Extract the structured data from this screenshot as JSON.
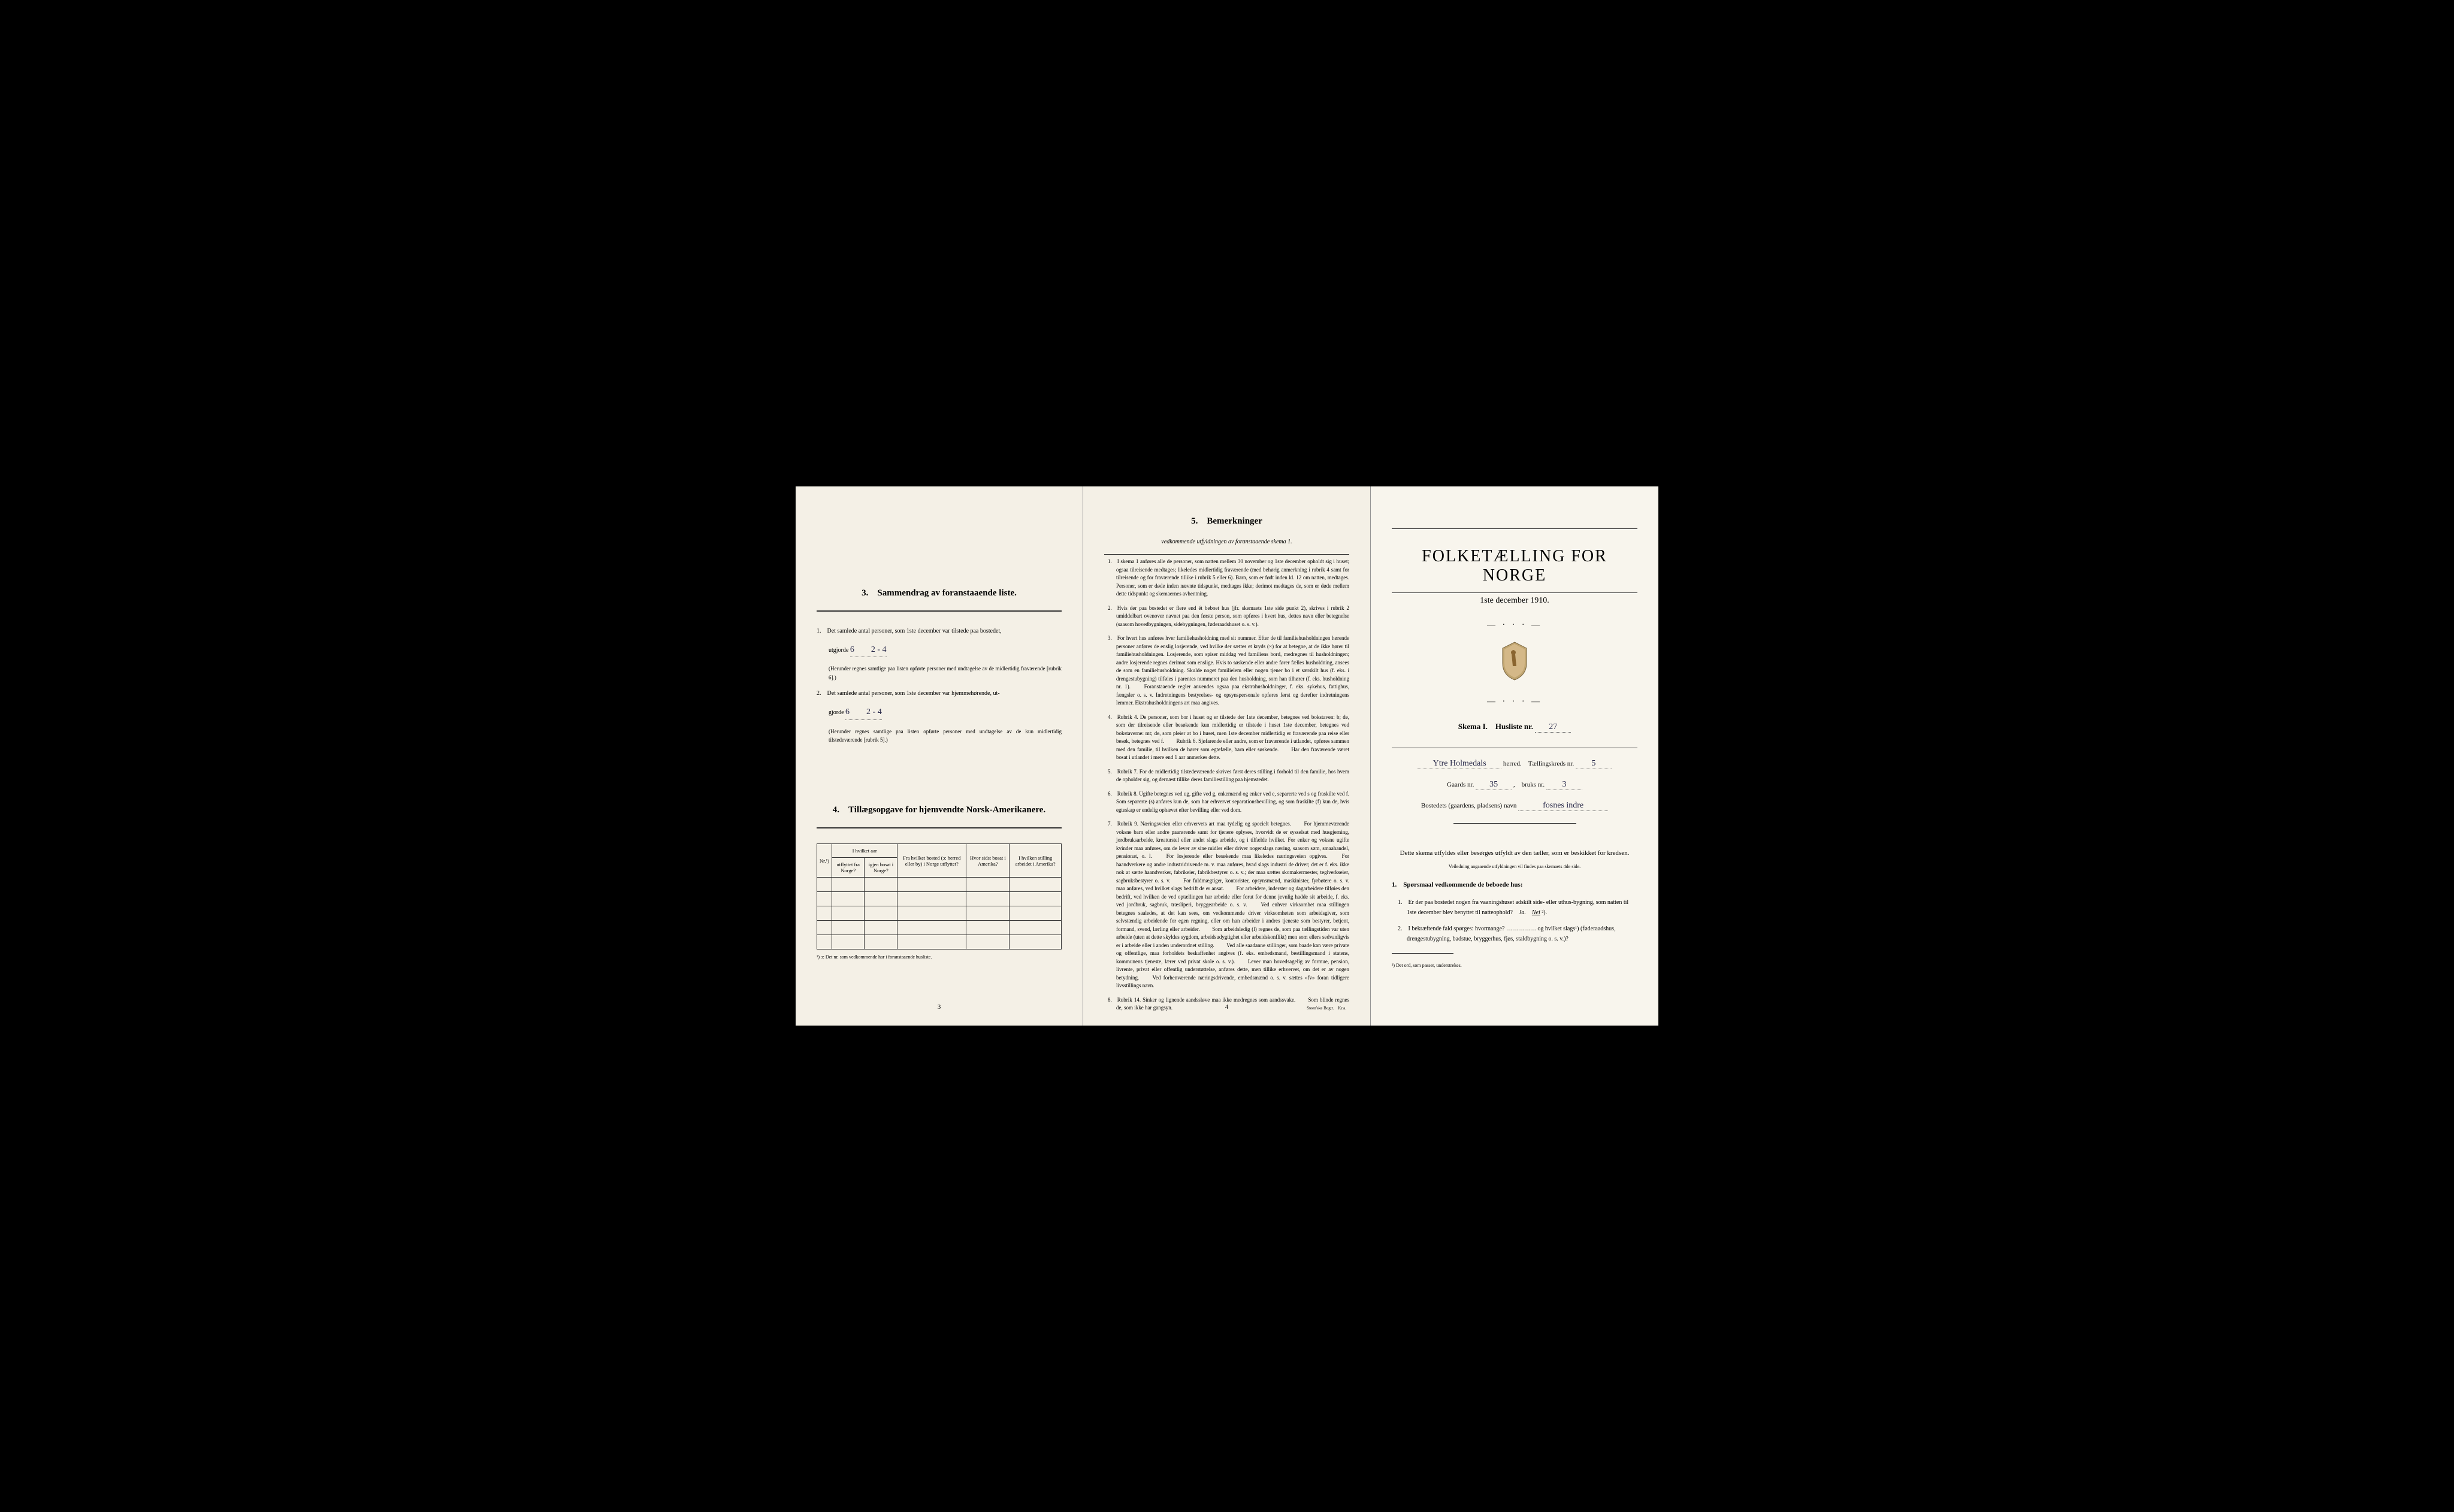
{
  "page1": {
    "section3_title": "3. Sammendrag av foranstaaende liste.",
    "item1_pre": "1. Det samlede antal personer, som 1ste december var tilstede paa bostedet,",
    "item1_line": "utgjorde",
    "item1_hand": "6  2 - 4",
    "item1_note": "(Herunder regnes samtlige paa listen opførte personer med undtagelse av de midlertidig fraværende [rubrik 6].)",
    "item2_pre": "2. Det samlede antal personer, som 1ste december var hjemmehørende, ut-",
    "item2_line": "gjorde",
    "item2_hand": "6  2 - 4",
    "item2_note": "(Herunder regnes samtlige paa listen opførte personer med undtagelse av de kun midlertidig tilstedeværende [rubrik 5].)",
    "section4_title": "4. Tillægsopgave for hjemvendte Norsk-Amerikanere.",
    "table": {
      "headers": [
        "Nr.¹)",
        "I hvilket aar",
        "Fra hvilket bosted (ɔ: herred eller by) i Norge utflyttet?",
        "Hvor sidst bosat i Amerika?",
        "I hvilken stilling arbeidet i Amerika?"
      ],
      "sub_headers": [
        "",
        "utflyttet fra Norge?",
        "igjen bosat i Norge?",
        "",
        "",
        ""
      ],
      "empty_rows": 5
    },
    "table_footnote": "¹) ɔ: Det nr. som vedkommende har i foranstaaende husliste.",
    "page_number": "3"
  },
  "page2": {
    "section5_title": "5. Bemerkninger",
    "section5_sub": "vedkommende utfyldningen av foranstaaende skema 1.",
    "items": [
      "1. I skema 1 anføres alle de personer, som natten mellem 30 november og 1ste december opholdt sig i huset; ogsaa tilreisende medtages; likeledes midlertidig fraværende (med behørig anmerkning i rubrik 4 samt for tilreisende og for fraværende tillike i rubrik 5 eller 6). Barn, som er født inden kl. 12 om natten, medtages. Personer, som er døde inden nævnte tidspunkt, medtages ikke; derimot medtages de, som er døde mellem dette tidspunkt og skemaernes avhentning.",
      "2. Hvis der paa bostedet er flere end ét beboet hus (jfr. skemaets 1ste side punkt 2), skrives i rubrik 2 umiddelbart ovenover navnet paa den første person, som opføres i hvert hus, dettes navn eller betegnelse (saasom hovedbygningen, sidebygningen, føderaadshuset o. s. v.).",
      "3. For hvert hus anføres hver familiehusholdning med sit nummer. Efter de til familiehusholdningen hørende personer anføres de enslig losjerende, ved hvilke der sættes et kryds (×) for at betegne, at de ikke hører til familiehusholdningen. Losjerende, som spiser middag ved familiens bord, medregnes til husholdningen; andre losjerende regnes derimot som enslige. Hvis to søskende eller andre fører fælles husholdning, ansees de som en familiehusholdning. Skulde noget familielem eller nogen tjener bo i et særskilt hus (f. eks. i drengestubygning) tilføies i parentes nummeret paa den husholdning, som han tilhører (f. eks. husholdning nr. 1).\n  Foranstaaende regler anvendes ogsaa paa ekstrahusholdninger, f. eks. sykehus, fattighus, fængsler o. s. v. Indretningens bestyrelses- og opsynspersonale opføres først og derefter indretningens lemmer. Ekstrahusholdningens art maa angives.",
      "4. Rubrik 4. De personer, som bor i huset og er tilstede der 1ste december, betegnes ved bokstaven: b; de, som der tilreisende eller besøkende kun midlertidig er tilstede i huset 1ste december, betegnes ved bokstaverne: mt; de, som pleier at bo i huset, men 1ste december midlertidig er fraværende paa reise eller besøk, betegnes ved f.\n  Rubrik 6. Sjøfarende eller andre, som er fraværende i utlandet, opføres sammen med den familie, til hvilken de hører som egtefælle, barn eller søskende.\n  Har den fraværende været bosat i utlandet i mere end 1 aar anmerkes dette.",
      "5. Rubrik 7. For de midlertidig tilstedeværende skrives først deres stilling i forhold til den familie, hos hvem de opholder sig, og dernæst tillike deres familiestilling paa hjemstedet.",
      "6. Rubrik 8. Ugifte betegnes ved ug, gifte ved g, enkemænd og enker ved e, separerte ved s og fraskilte ved f. Som separerte (s) anføres kun de, som har erhvervet separationsbevilling, og som fraskilte (f) kun de, hvis egteskap er endelig ophævet efter bevilling eller ved dom.",
      "7. Rubrik 9. Næringsveien eller erhvervets art maa tydelig og specielt betegnes.\n  For hjemmeværende voksne barn eller andre paarørende samt for tjenere oplyses, hvorvidt de er sysselsat med husgjerning, jordbruksarbeide, kreaturstel eller andet slags arbeide, og i tilfælde hvilket. For enker og voksne ugifte kvinder maa anføres, om de lever av sine midler eller driver nogenslags næring, saasom søm, smaahandel, pensionat, o. l.\n  For losjerende eller besøkende maa likeledes næringsveien opgives.\n  For haandverkere og andre industridrivende m. v. maa anføres, hvad slags industri de driver; det er f. eks. ikke nok at sætte haandverker, fabrikeier, fabrikbestyrer o. s. v.; der maa sættes skomakermester, teglverkseier, sagbruksbestyrer o. s. v.\n  For fuldmægtiger, kontorister, opsynsmænd, maskinister, fyrbøtere o. s. v. maa anføres, ved hvilket slags bedrift de er ansat.\n  For arbeidere, inderster og dagarbeidere tilføies den bedrift, ved hvilken de ved optællingen har arbeide eller forut for denne jevnlig hadde sit arbeide, f. eks. ved jordbruk, sagbruk, træsliperi, bryggearbeide o. s. v.\n  Ved enhver virksomhet maa stillingen betegnes saaledes, at det kan sees, om vedkommende driver virksomheten som arbeidsgiver, som selvstændig arbeidende for egen regning, eller om han arbeider i andres tjeneste som bestyrer, betjent, formand, svend, lærling eller arbeider.\n  Som arbeidsledig (l) regnes de, som paa tællingstiden var uten arbeide (uten at dette skyldes sygdom, arbeidsudygtighet eller arbeidskonflikt) men som ellers sedvanligvis er i arbeide eller i anden underordnet stilling.\n  Ved alle saadanne stillinger, som baade kan være private og offentlige, maa forholdets beskaffenhet angives (f. eks. embedsmand, bestillingsmand i statens, kommunens tjeneste, lærer ved privat skole o. s. v.).\n  Lever man hovedsagelig av formue, pension, livrente, privat eller offentlig understøttelse, anføres dette, men tillike erhvervet, om det er av nogen betydning.\n  Ved forhenværende næringsdrivende, embedsmænd o. s. v. sættes «fv» foran tidligere livsstillings navn.",
      "8. Rubrik 14. Sinker og lignende aandssløve maa ikke medregnes som aandssvake.\n  Som blinde regnes de, som ikke har gangsyn."
    ],
    "page_number": "4",
    "printer": "Steen'ske Bogtr. Kr.a."
  },
  "page3": {
    "main_title": "FOLKETÆLLING FOR NORGE",
    "date": "1ste december 1910.",
    "skema": "Skema I. Husliste nr.",
    "husliste_nr": "27",
    "herred_hand": "Ytre Holmedals",
    "herred_label": "herred. Tællingskreds nr.",
    "kreds_nr": "5",
    "gaards_label": "Gaards nr.",
    "gaards_nr": "35",
    "bruks_label": ", bruks nr.",
    "bruks_nr": "3",
    "bosted_label": "Bostedets (gaardens, pladsens) navn",
    "bosted_hand": "fosnes indre",
    "intro": "Dette skema utfyldes eller besørges utfyldt av den tæller, som er beskikket for kredsen.",
    "intro_sub": "Veiledning angaaende utfyldningen vil findes paa skemaets 4de side.",
    "q_head": "1. Spørsmaal vedkommende de beboede hus:",
    "q1": "1. Er der paa bostedet nogen fra vaaningshuset adskilt side- eller uthus-bygning, som natten til 1ste december blev benyttet til natteophold? Ja. Nei ²).",
    "q2": "2. I bekræftende fald spørges: hvormange? …………… og hvilket slags¹) (føderaadshus, drengestubygning, badstue, bryggerhus, fjøs, staldbygning o. s. v.)?",
    "footnote": "²) Det ord, som passer, understrekes."
  }
}
